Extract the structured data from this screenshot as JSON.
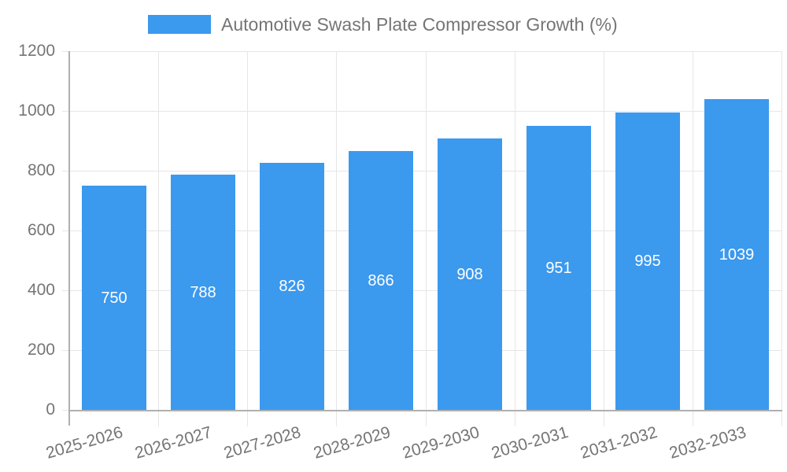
{
  "legend": {
    "label": "Automotive Swash Plate Compressor Growth (%)"
  },
  "chart_data": {
    "type": "bar",
    "title": "Automotive Swash Plate Compressor Growth (%)",
    "series_name": "Automotive Swash Plate Compressor Growth (%)",
    "categories": [
      "2025-2026",
      "2026-2027",
      "2027-2028",
      "2028-2029",
      "2029-2030",
      "2030-2031",
      "2031-2032",
      "2032-2033"
    ],
    "values": [
      750,
      788,
      826,
      866,
      908,
      951,
      995,
      1039
    ],
    "value_labels": [
      "750",
      "788",
      "826",
      "866",
      "908",
      "951",
      "995",
      "1039"
    ],
    "xlabel": "",
    "ylabel": "",
    "ylim": [
      0,
      1200
    ],
    "yticks": [
      0,
      200,
      400,
      600,
      800,
      1000,
      1200
    ],
    "ytick_labels": [
      "0",
      "200",
      "400",
      "600",
      "800",
      "1000",
      "1200"
    ],
    "grid": true,
    "legend_position": "top",
    "x_label_rotation_deg": -16
  },
  "colors": {
    "bar": "#3b99ee",
    "axis_text": "#757575",
    "value_text": "#ffffff",
    "grid_line": "#e6e6e6",
    "axis_line": "#b0b0b0",
    "background": "#ffffff"
  }
}
